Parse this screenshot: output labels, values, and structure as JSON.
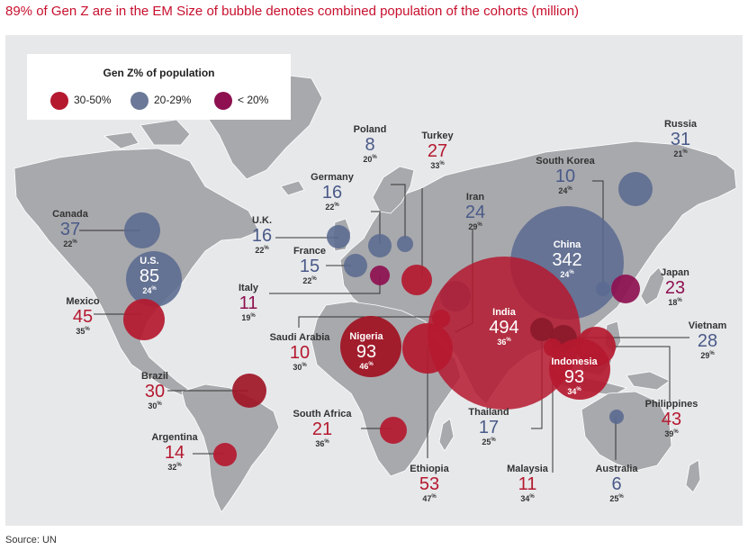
{
  "title": "89% of Gen Z are in the EM Size of bubble denotes combined population of the cohorts (million)",
  "source": "Source: UN",
  "colors": {
    "high": "#b5192f",
    "mid": "#6b7898",
    "low": "#8e1050",
    "land": "#a8a9ad",
    "sea": "#e7e8ea",
    "headline": "#c8102e"
  },
  "legend": {
    "title": "Gen Z% of population",
    "items": [
      {
        "label": "30-50%",
        "color": "#b5192f"
      },
      {
        "label": "20-29%",
        "color": "#6b7898"
      },
      {
        "label": "< 20%",
        "color": "#8e1050"
      }
    ]
  },
  "countries": [
    {
      "name": "Canada",
      "value": "37",
      "pct": "22",
      "category": "mid"
    },
    {
      "name": "U.S.",
      "value": "85",
      "pct": "24",
      "category": "mid"
    },
    {
      "name": "Mexico",
      "value": "45",
      "pct": "35",
      "category": "high"
    },
    {
      "name": "Brazil",
      "value": "30",
      "pct": "30",
      "category": "high"
    },
    {
      "name": "Argentina",
      "value": "14",
      "pct": "32",
      "category": "high"
    },
    {
      "name": "U.K.",
      "value": "16",
      "pct": "22",
      "category": "mid"
    },
    {
      "name": "France",
      "value": "15",
      "pct": "22",
      "category": "mid"
    },
    {
      "name": "Germany",
      "value": "16",
      "pct": "22",
      "category": "mid"
    },
    {
      "name": "Poland",
      "value": "8",
      "pct": "20",
      "category": "mid"
    },
    {
      "name": "Italy",
      "value": "11",
      "pct": "19",
      "category": "low"
    },
    {
      "name": "Turkey",
      "value": "27",
      "pct": "33",
      "category": "high"
    },
    {
      "name": "Iran",
      "value": "24",
      "pct": "29",
      "category": "mid"
    },
    {
      "name": "Saudi Arabia",
      "value": "10",
      "pct": "30",
      "category": "high"
    },
    {
      "name": "Nigeria",
      "value": "93",
      "pct": "46",
      "category": "high"
    },
    {
      "name": "Ethiopia",
      "value": "53",
      "pct": "47",
      "category": "high"
    },
    {
      "name": "South Africa",
      "value": "21",
      "pct": "36",
      "category": "high"
    },
    {
      "name": "India",
      "value": "494",
      "pct": "36",
      "category": "high"
    },
    {
      "name": "China",
      "value": "342",
      "pct": "24",
      "category": "mid"
    },
    {
      "name": "Russia",
      "value": "31",
      "pct": "21",
      "category": "mid"
    },
    {
      "name": "South Korea",
      "value": "10",
      "pct": "24",
      "category": "mid"
    },
    {
      "name": "Japan",
      "value": "23",
      "pct": "18",
      "category": "low"
    },
    {
      "name": "Vietnam",
      "value": "28",
      "pct": "29",
      "category": "mid"
    },
    {
      "name": "Philippines",
      "value": "43",
      "pct": "39",
      "category": "high"
    },
    {
      "name": "Indonesia",
      "value": "93",
      "pct": "34",
      "category": "high"
    },
    {
      "name": "Thailand",
      "value": "17",
      "pct": "25",
      "category": "mid"
    },
    {
      "name": "Malaysia",
      "value": "11",
      "pct": "34",
      "category": "high"
    },
    {
      "name": "Australia",
      "value": "6",
      "pct": "25",
      "category": "mid"
    }
  ]
}
